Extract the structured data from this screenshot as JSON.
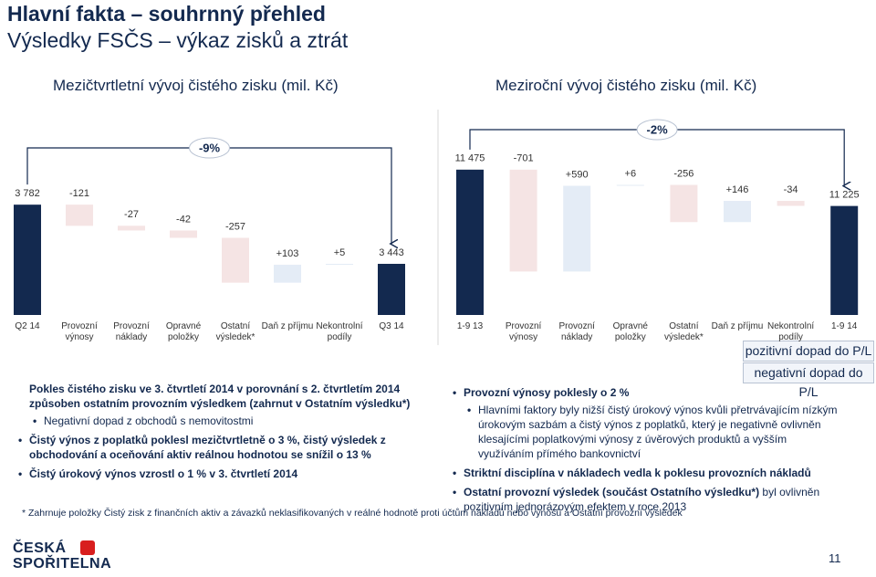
{
  "header": {
    "title": "Hlavní fakta – souhrnný přehled",
    "subtitle": "Výsledky FSČS – výkaz zisků a ztrát"
  },
  "chart_data": [
    {
      "type": "waterfall",
      "title": "Mezičtvrtletní vývoj čistého zisku (mil. Kč)",
      "categories": [
        "Q2 14",
        "Provozní výnosy",
        "Provozní náklady",
        "Opravné položky",
        "Ostatní výsledek*",
        "Daň z příjmu",
        "Nekontrolní podíly",
        "Q3 14"
      ],
      "values": [
        3782,
        -121,
        -27,
        -42,
        -257,
        103,
        5,
        3443
      ],
      "value_labels": [
        "3 782",
        "-121",
        "-27",
        "-42",
        "-257",
        "+103",
        "+5",
        "3 443"
      ],
      "ylim": [
        3150,
        4170
      ],
      "annotation": "-9%",
      "total_color": "#13294f",
      "positive_color": "#e4ecf6",
      "negative_color": "#f5e4e4"
    },
    {
      "type": "waterfall",
      "title": "Meziroční vývoj čistého zisku (mil. Kč)",
      "categories": [
        "1-9 13",
        "Provozní výnosy",
        "Provozní náklady",
        "Opravné položky",
        "Ostatní výsledek*",
        "Daň z příjmu",
        "Nekontrolní podíly",
        "1-9 14"
      ],
      "values": [
        11475,
        -701,
        590,
        6,
        -256,
        146,
        -34,
        11225
      ],
      "value_labels": [
        "11 475",
        "-701",
        "+590",
        "+6",
        "-256",
        "+146",
        "-34",
        "11 225"
      ],
      "ylim": [
        10475,
        11700
      ],
      "annotation": "-2%",
      "total_color": "#13294f",
      "positive_color": "#e4ecf6",
      "negative_color": "#f5e4e4"
    }
  ],
  "legend": {
    "positive": "pozitivní dopad do P/L",
    "negative": "negativní dopad do P/L"
  },
  "notes_left": [
    {
      "level": 0,
      "bullet": false,
      "parts": [
        {
          "text": "Pokles čistého zisku ve 3. čtvrtletí 2014 v porovnání s 2. čtvrtletím 2014 způsoben ostatním provozním výsledkem (zahrnut v Ostatním výsledku*)",
          "bold": true
        }
      ]
    },
    {
      "level": 1,
      "bullet": true,
      "parts": [
        {
          "text": "Negativní dopad z obchodů s nemovitostmi",
          "bold": false
        }
      ]
    },
    {
      "level": 0,
      "bullet": true,
      "parts": [
        {
          "text": "Čistý výnos z poplatků poklesl mezičtvrtletně o 3 %, čistý výsledek z obchodování a oceňování aktiv reálnou hodnotou se snížil o 13 %",
          "bold": true
        }
      ]
    },
    {
      "level": 0,
      "bullet": true,
      "parts": [
        {
          "text": "Čistý úrokový výnos vzrostl o 1 % v 3. čtvrtletí 2014",
          "bold": true
        }
      ]
    }
  ],
  "notes_right": [
    {
      "level": 0,
      "bullet": true,
      "parts": [
        {
          "text": "Provozní výnosy poklesly o 2 %",
          "bold": true
        }
      ]
    },
    {
      "level": 1,
      "bullet": true,
      "parts": [
        {
          "text": "Hlavními faktory byly nižší čistý úrokový výnos kvůli přetrvávajícím nízkým úrokovým sazbám a čistý výnos z poplatků, který je negativně ovlivněn klesajícími poplatkovými výnosy z úvěrových produktů a vyšším využíváním přímého bankovnictví",
          "bold": false
        }
      ]
    },
    {
      "level": 0,
      "bullet": true,
      "parts": [
        {
          "text": "Striktní disciplína v nákladech vedla k poklesu provozních nákladů",
          "bold": true
        }
      ]
    },
    {
      "level": 0,
      "bullet": true,
      "parts": [
        {
          "text": "Ostatní provozní výsledek (součást Ostatního výsledku*)",
          "bold": true
        },
        {
          "text": " byl ovlivněn pozitivním jednorázovým efektem v roce 2013",
          "bold": false
        }
      ]
    }
  ],
  "footnote": "* Zahrnuje položky Čistý zisk z finančních aktiv a závazků neklasifikovaných v reálné hodnotě proti účtům nákladů nebo výnosů a Ostatní provozní výsledek",
  "logo": [
    "ČESKÁ",
    "SPOŘITELNA"
  ],
  "page_number": 11
}
